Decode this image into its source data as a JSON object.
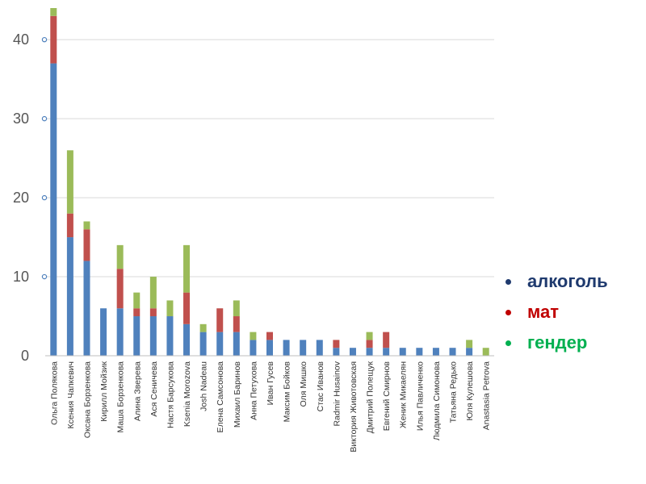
{
  "chart_data": {
    "type": "bar",
    "stacked": true,
    "categories": [
      "Ольга Полякова",
      "Ксения Чапкевич",
      "Оксана Борзенкова",
      "Кирилл Мойзик",
      "Маша Борзенкова",
      "Алина Зверева",
      "Ася Сеничева",
      "Настя Барсукова",
      "Ksenia Morozova",
      "Josh Nadeau",
      "Елена Самсонова",
      "Михаил Баринов",
      "Анна Петухова",
      "Иван Гусев",
      "Максим Бойков",
      "Оля Мишко",
      "Стас Иванов",
      "Radmir Husainov",
      "Виктория Животовская",
      "Дмитрий Полещук",
      "Евгений Смирнов",
      "Женик Микаелян",
      "Илья Павличенко",
      "Людмила Симонова",
      "Татьяна Редько",
      "Юля Кулешова",
      "Anastasia Petrova"
    ],
    "series": [
      {
        "name": "алкоголь",
        "color": "#4f81bd",
        "values": [
          37,
          15,
          12,
          6,
          6,
          5,
          5,
          5,
          4,
          3,
          3,
          3,
          2,
          2,
          2,
          2,
          2,
          1,
          1,
          1,
          1,
          1,
          1,
          1,
          1,
          1,
          0
        ]
      },
      {
        "name": "мат",
        "color": "#c0504d",
        "values": [
          6,
          3,
          4,
          0,
          5,
          1,
          1,
          0,
          4,
          0,
          3,
          2,
          0,
          1,
          0,
          0,
          0,
          1,
          0,
          1,
          2,
          0,
          0,
          0,
          0,
          0,
          0
        ]
      },
      {
        "name": "гендер",
        "color": "#9bbb59",
        "values": [
          1,
          8,
          1,
          0,
          3,
          2,
          4,
          2,
          6,
          1,
          0,
          2,
          1,
          0,
          0,
          0,
          0,
          0,
          0,
          1,
          0,
          0,
          0,
          0,
          0,
          1,
          1
        ]
      }
    ],
    "ylim": [
      0,
      44
    ],
    "yticks": [
      0,
      10,
      20,
      30,
      40
    ],
    "grid": true,
    "legend_position": "right",
    "title": "",
    "xlabel": "",
    "ylabel": ""
  },
  "legend": [
    {
      "label": "алкоголь",
      "dot_color": "#1f3a6e",
      "text_color": "#1f3a6e"
    },
    {
      "label": "мат",
      "dot_color": "#c00000",
      "text_color": "#c00000"
    },
    {
      "label": "гендер",
      "dot_color": "#00b050",
      "text_color": "#00b050"
    }
  ]
}
